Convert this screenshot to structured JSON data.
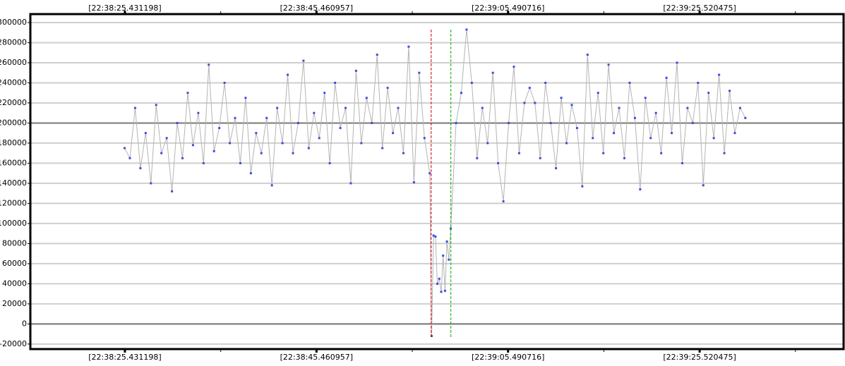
{
  "chart_data": {
    "type": "line",
    "x": [
      25.4,
      25.95,
      26.5,
      27.05,
      27.6,
      28.15,
      28.7,
      29.25,
      29.8,
      30.35,
      30.9,
      31.45,
      32,
      32.55,
      33.1,
      33.65,
      34.2,
      34.75,
      35.3,
      35.85,
      36.4,
      36.95,
      37.5,
      38.05,
      38.6,
      39.15,
      39.7,
      40.25,
      40.8,
      41.35,
      41.9,
      42.45,
      43,
      43.55,
      44.1,
      44.65,
      45.2,
      45.75,
      46.3,
      46.85,
      47.4,
      47.95,
      48.5,
      49.05,
      49.6,
      50.15,
      50.7,
      51.25,
      51.8,
      52.35,
      52.9,
      53.45,
      54,
      54.55,
      55.1,
      55.65,
      56.2,
      56.75,
      57.3,
      57.5,
      57.7,
      57.9,
      58.1,
      58.3,
      58.5,
      58.7,
      58.9,
      59.1,
      59.3,
      59.5,
      60.05,
      60.6,
      61.15,
      61.7,
      62.25,
      62.8,
      63.35,
      63.9,
      64.45,
      65,
      65.55,
      66.1,
      66.65,
      67.2,
      67.75,
      68.3,
      68.85,
      69.4,
      69.95,
      70.5,
      71.05,
      71.6,
      72.15,
      72.7,
      73.25,
      73.8,
      74.35,
      74.9,
      75.45,
      76,
      76.55,
      77.1,
      77.65,
      78.2,
      78.75,
      79.3,
      79.85,
      80.4,
      80.95,
      81.5,
      82.05,
      82.6,
      83.15,
      83.7,
      84.25,
      84.8,
      85.35,
      85.9,
      86.45,
      87,
      87.55,
      88.1,
      88.65,
      89.2,
      89.75,
      90.3
    ],
    "values": [
      175000,
      165000,
      215000,
      155000,
      190000,
      140000,
      218000,
      170000,
      185000,
      132000,
      200000,
      165000,
      230000,
      178000,
      210000,
      160000,
      258000,
      172000,
      195000,
      240000,
      180000,
      205000,
      160000,
      225000,
      150000,
      190000,
      170000,
      205000,
      138000,
      215000,
      180000,
      248000,
      170000,
      200000,
      262000,
      175000,
      210000,
      185000,
      230000,
      160000,
      240000,
      195000,
      215000,
      140000,
      252000,
      180000,
      225000,
      200000,
      268000,
      175000,
      235000,
      190000,
      215000,
      170000,
      276000,
      141000,
      250000,
      185000,
      150000,
      -12000,
      88000,
      87000,
      40000,
      45000,
      32000,
      68000,
      33000,
      82000,
      64000,
      95000,
      200000,
      230000,
      293000,
      240000,
      165000,
      215000,
      180000,
      250000,
      160000,
      122000,
      200000,
      256000,
      170000,
      220000,
      235000,
      220000,
      165000,
      240000,
      200000,
      155000,
      225000,
      180000,
      218000,
      195000,
      137000,
      268000,
      185000,
      230000,
      170000,
      258000,
      190000,
      215000,
      165000,
      240000,
      205000,
      134000,
      225000,
      185000,
      210000,
      170000,
      245000,
      190000,
      260000,
      160000,
      215000,
      200000,
      240000,
      138000,
      230000,
      185000,
      248000,
      170000,
      232000,
      190000,
      215000,
      205000
    ],
    "line_color": "#b4b4b4",
    "marker_color": "#3a4ee0",
    "xlim": [
      15.545,
      100.57
    ],
    "xticks": [
      {
        "value": 25.431198,
        "label": "[22:38:25.431198]"
      },
      {
        "value": 45.460957,
        "label": "[22:38:45.460957]"
      },
      {
        "value": 65.490716,
        "label": "[22:39:05.490716]"
      },
      {
        "value": 85.520475,
        "label": "[22:39:25.520475]"
      }
    ],
    "ylim": [
      -25000,
      308400
    ],
    "yticks": [
      -20000,
      0,
      20000,
      40000,
      60000,
      80000,
      100000,
      120000,
      140000,
      160000,
      180000,
      200000,
      220000,
      240000,
      260000,
      280000,
      300000
    ],
    "grid": true,
    "reference_lines": [
      200000,
      0
    ],
    "markers": [
      {
        "x": 57.45,
        "color": "#cc0000"
      },
      {
        "x": 59.51,
        "color": "#00aa00"
      }
    ]
  }
}
